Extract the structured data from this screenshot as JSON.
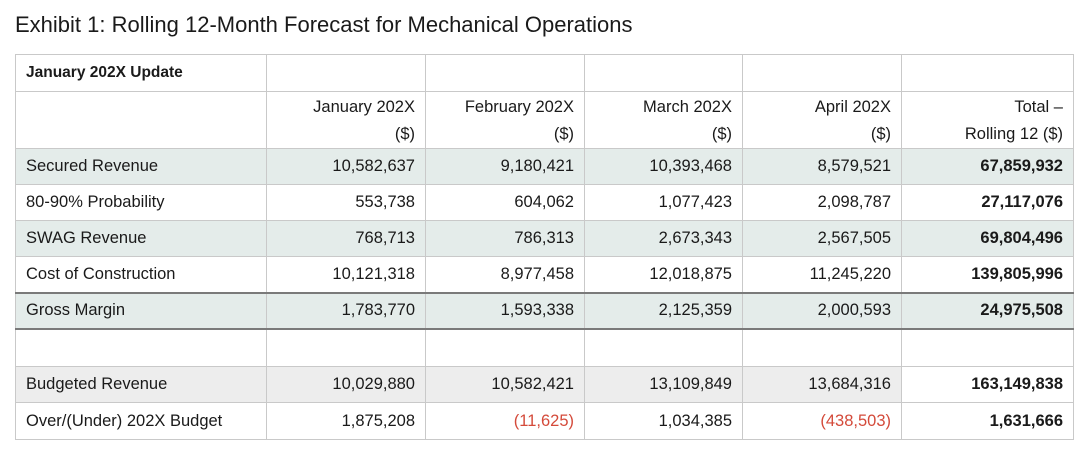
{
  "title": "Exhibit 1: Rolling 12-Month Forecast for Mechanical Operations",
  "update_label": "January 202X Update",
  "headers": [
    {
      "line1": "January 202X",
      "line2": "($)"
    },
    {
      "line1": "February 202X",
      "line2": "($)"
    },
    {
      "line1": "March 202X",
      "line2": "($)"
    },
    {
      "line1": "April 202X",
      "line2": "($)"
    },
    {
      "line1": "Total –",
      "line2": "Rolling 12 ($)"
    }
  ],
  "rows": {
    "secured_revenue": {
      "label": "Secured Revenue",
      "values": [
        "10,582,637",
        "9,180,421",
        "10,393,468",
        "8,579,521"
      ],
      "total": "67,859,932"
    },
    "probability": {
      "label": "80-90% Probability",
      "values": [
        "553,738",
        "604,062",
        "1,077,423",
        "2,098,787"
      ],
      "total": "27,117,076"
    },
    "swag_revenue": {
      "label": "SWAG Revenue",
      "values": [
        "768,713",
        "786,313",
        "2,673,343",
        "2,567,505"
      ],
      "total": "69,804,496"
    },
    "cost_of_construction": {
      "label": "Cost of Construction",
      "values": [
        "10,121,318",
        "8,977,458",
        "12,018,875",
        "11,245,220"
      ],
      "total": "139,805,996"
    },
    "gross_margin": {
      "label": "Gross Margin",
      "values": [
        "1,783,770",
        "1,593,338",
        "2,125,359",
        "2,000,593"
      ],
      "total": "24,975,508"
    },
    "budgeted_revenue": {
      "label": "Budgeted Revenue",
      "values": [
        "10,029,880",
        "10,582,421",
        "13,109,849",
        "13,684,316"
      ],
      "total": "163,149,838"
    },
    "over_under_budget": {
      "label": "Over/(Under) 202X Budget",
      "values": [
        "1,875,208",
        "(11,625)",
        "1,034,385",
        "(438,503)"
      ],
      "total": "1,631,666"
    }
  },
  "colors": {
    "shade_green": "#e4ecea",
    "shade_gray": "#ededed",
    "negative_red": "#d44a3a",
    "grid_line": "#c9c9c9"
  }
}
